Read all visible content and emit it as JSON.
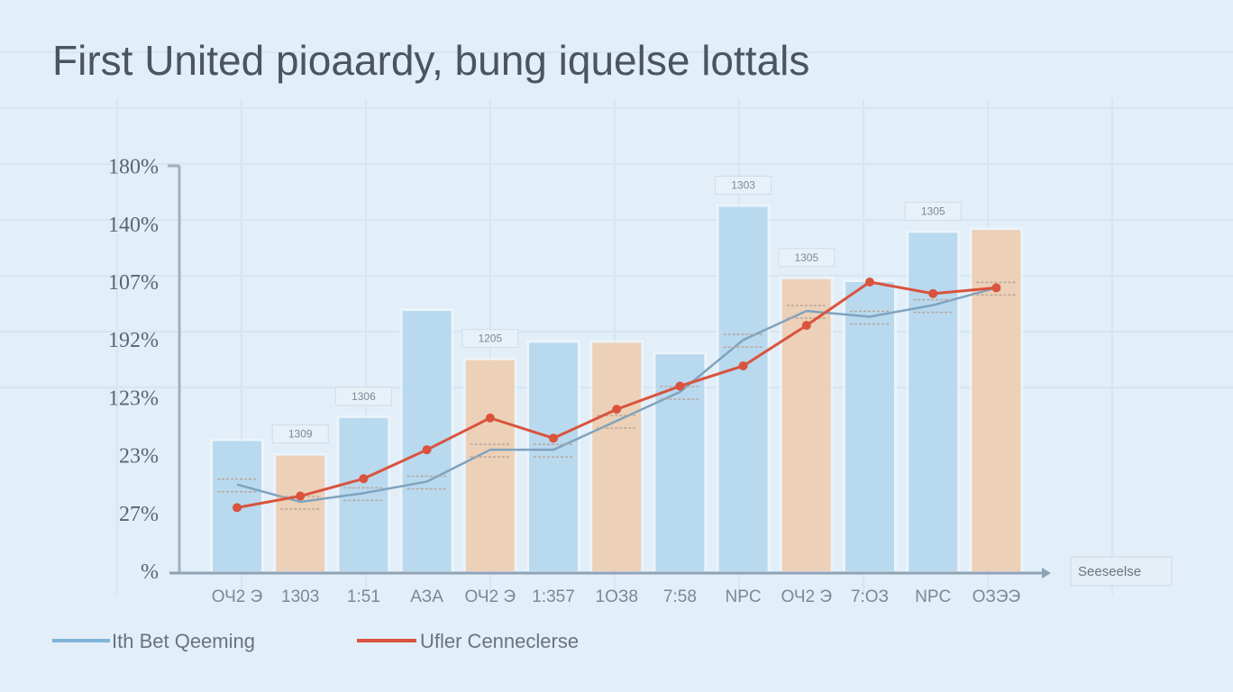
{
  "chart_data": {
    "type": "bar",
    "title": "First United pioaardy, bung iquelse lottals",
    "xlabel": "Seeseelse",
    "ylabel": "",
    "y_ticks": [
      "%",
      "27%",
      "23%",
      "123%",
      "192%",
      "107%",
      "140%",
      "180%"
    ],
    "ylim": [
      0,
      7
    ],
    "grid": true,
    "legend_position": "bottom-left",
    "categories": [
      "ОЧ2 Э",
      "1303",
      "1:51",
      "АЗА",
      "ОЧ2 Э",
      "1:357",
      "1ОЗ8",
      "7:58",
      "NPC",
      "ОЧ2 Э",
      "7:ОЗ",
      "NPC",
      "ОЗЭЭ"
    ],
    "bar_colors": [
      "#b9d9ef",
      "#edd0b8",
      "#b9d9ef",
      "#b9d9ef",
      "#edd0b8",
      "#b9d9ef",
      "#edd0b8",
      "#b9d9ef",
      "#b9d9ef",
      "#edd0b8",
      "#b9d9ef",
      "#b9d9ef",
      "#edd0b8"
    ],
    "bars": [
      2.25,
      2.0,
      2.65,
      4.5,
      3.65,
      3.95,
      3.95,
      3.75,
      6.3,
      5.05,
      5.0,
      5.85,
      5.9
    ],
    "bar_labels": [
      "",
      "1309",
      "1306",
      "",
      "1205",
      "",
      "",
      "",
      "1303",
      "1305",
      "",
      "1305",
      ""
    ],
    "series": [
      {
        "name": "Ith Bet Qeeming",
        "color": "#7fa3be",
        "values": [
          1.5,
          1.2,
          1.35,
          1.55,
          2.1,
          2.1,
          2.6,
          3.1,
          4.0,
          4.5,
          4.4,
          4.6,
          4.9
        ]
      },
      {
        "name": "Ufler Cenneclerse",
        "color": "#d9533d",
        "values": [
          1.1,
          1.3,
          1.6,
          2.1,
          2.65,
          2.3,
          2.8,
          3.2,
          3.55,
          4.25,
          5.0,
          4.8,
          4.9
        ]
      }
    ],
    "legend": [
      {
        "label": "Ith Bet Qeeming",
        "color": "#7fb4d8"
      },
      {
        "label": "Ufler Cenneclerse",
        "color": "#d9533d"
      }
    ]
  }
}
